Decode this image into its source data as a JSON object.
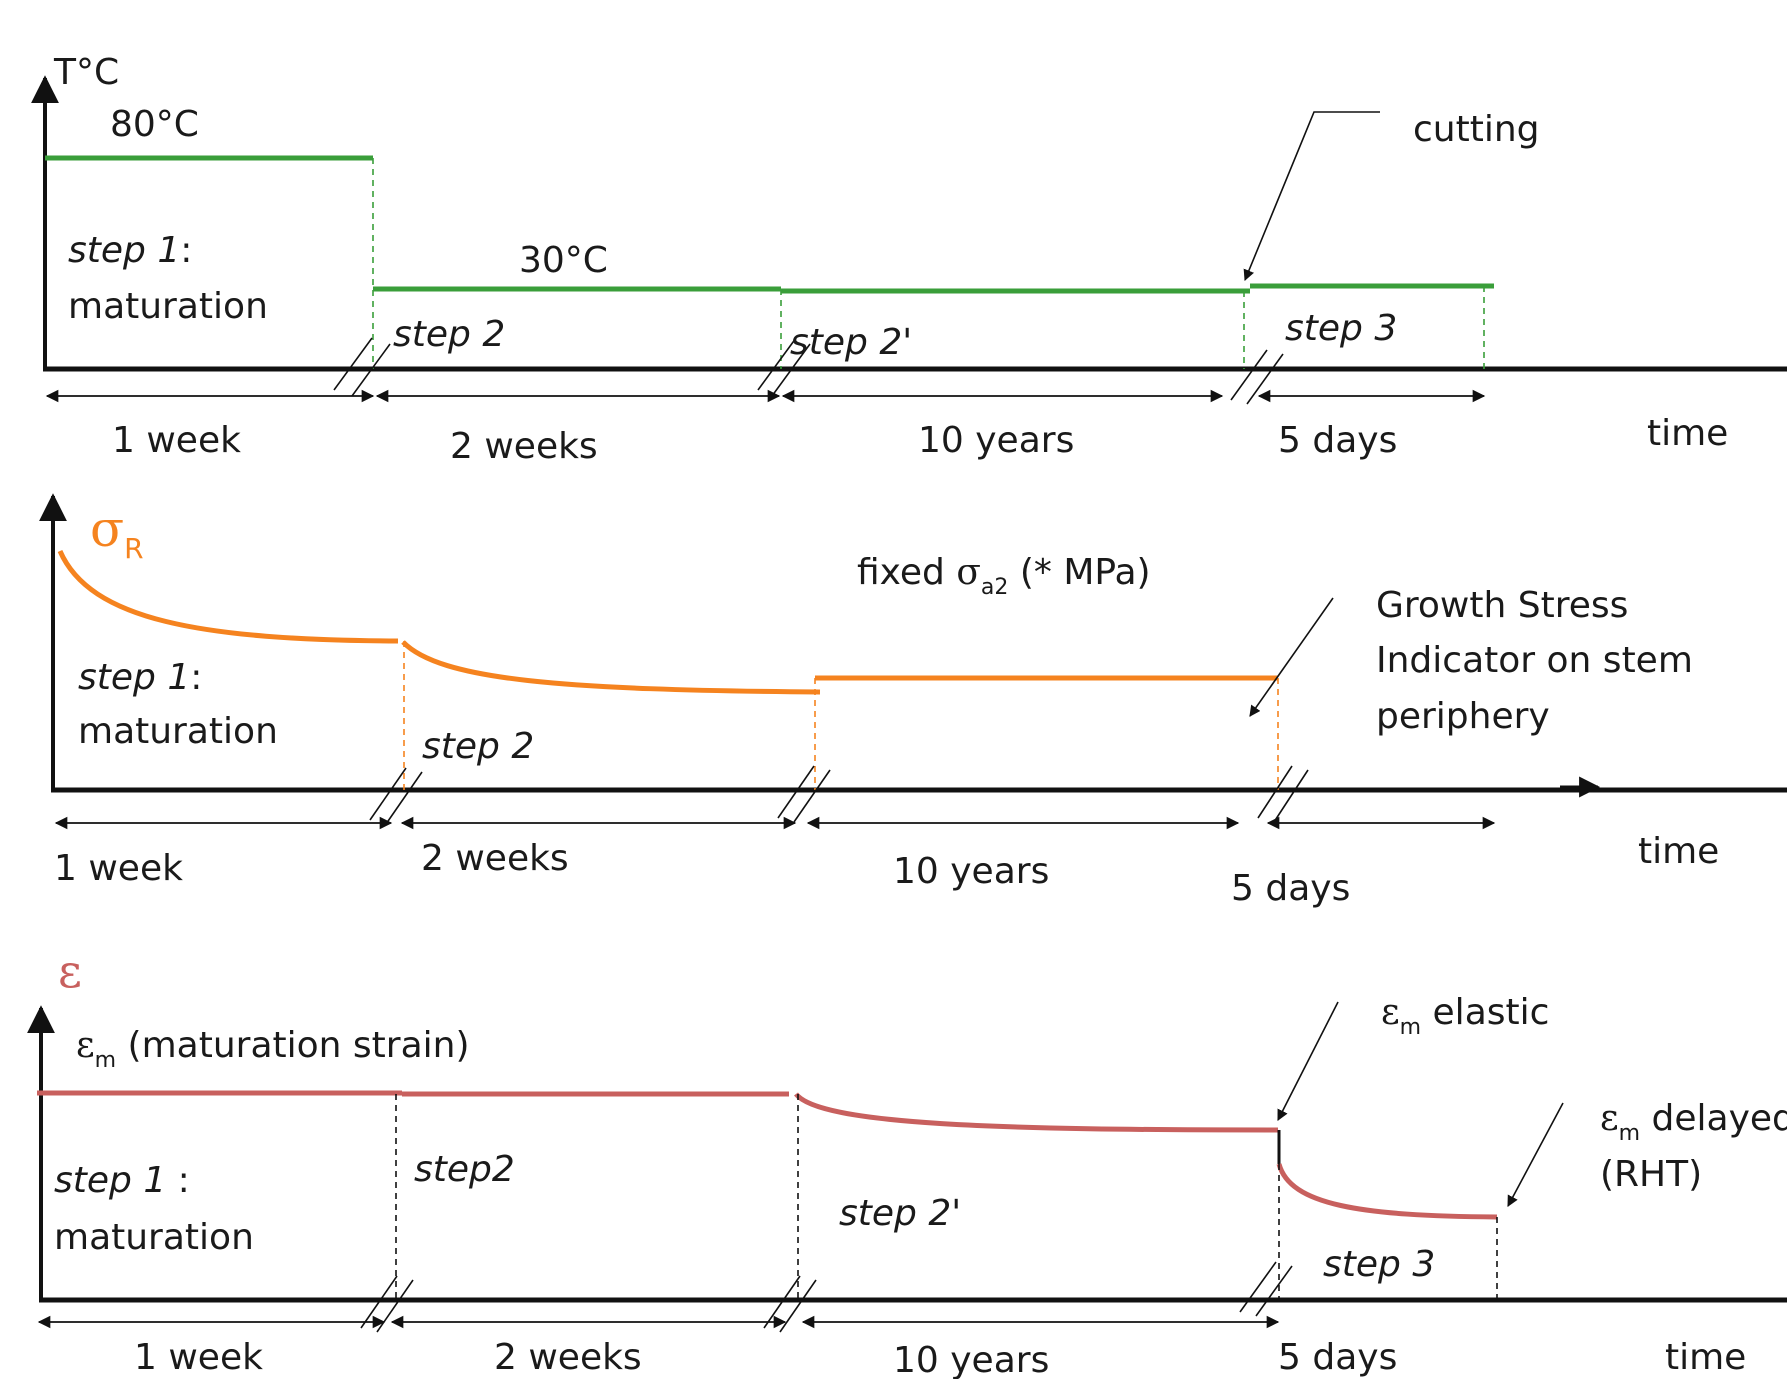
{
  "panels": {
    "temperature": {
      "axis_label": "T°C",
      "color": "#3a9e3a",
      "level_high": "80°C",
      "level_low": "30°C",
      "step1_prefix": "step 1",
      "step1_suffix": ":",
      "step1_name": "maturation",
      "step2": "step 2",
      "step2prime": "step 2'",
      "step3": "step 3",
      "annotation": "cutting",
      "durations": [
        "1 week",
        "2 weeks",
        "10 years",
        "5 days"
      ],
      "time_label": "time"
    },
    "stress": {
      "axis_symbol": "σ",
      "axis_sub": "R",
      "color": "#f5831f",
      "fixed_prefix": "fixed ",
      "fixed_symbol": "σ",
      "fixed_sub": "a2",
      "fixed_suffix": " (* MPa)",
      "step1_prefix": "step 1",
      "step1_suffix": ":",
      "step1_name": "maturation",
      "step2": "step 2",
      "annotation_lines": [
        "Growth Stress",
        "Indicator on stem",
        "periphery"
      ],
      "durations": [
        "1 week",
        "2 weeks",
        "10 years",
        "5 days"
      ],
      "time_label": "time"
    },
    "strain": {
      "axis_symbol": "ε",
      "color": "#c8605e",
      "em_symbol": "ε",
      "em_sub": "m",
      "em_label": " (maturation strain)",
      "elastic_label": " elastic",
      "delayed_label": " delayed",
      "delayed_sub_label": "(RHT)",
      "step1_prefix": "step 1",
      "step1_suffix": " :",
      "step1_name": "maturation",
      "step2": "step2",
      "step2prime": "step 2'",
      "step3": "step 3",
      "durations": [
        "1 week",
        "2 weeks",
        "10 years",
        "5 days"
      ],
      "time_label": "time"
    }
  }
}
